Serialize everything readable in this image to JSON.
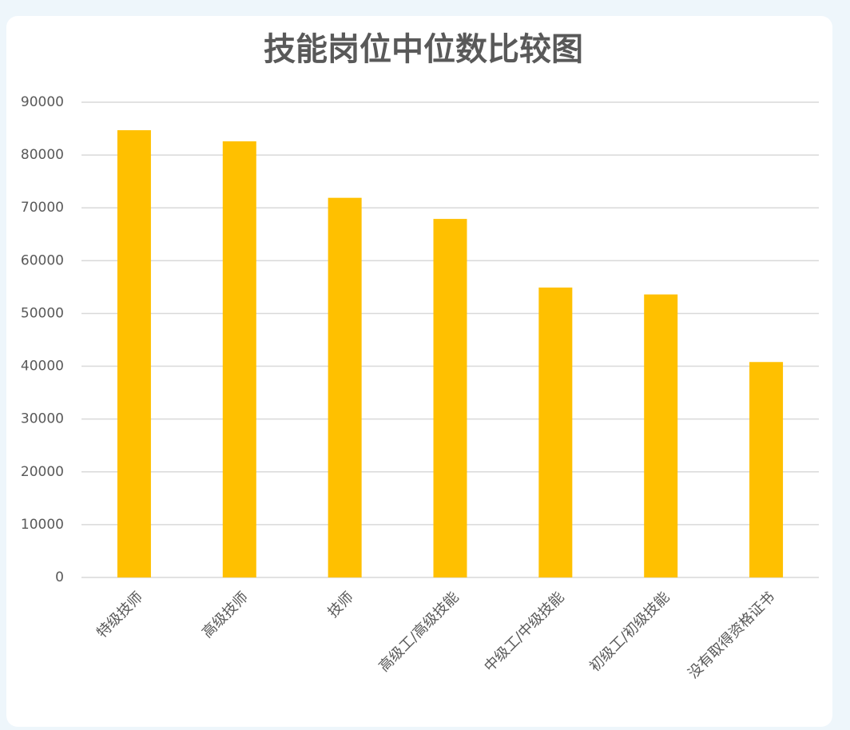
{
  "chart_data": {
    "type": "bar",
    "title": "技能岗位中位数比较图",
    "categories": [
      "特级技师",
      "高级技师",
      "技师",
      "高级工/高级技能",
      "中级工/中级技能",
      "初级工/初级技能",
      "没有取得资格证书"
    ],
    "values": [
      84700,
      82600,
      71900,
      67900,
      54900,
      53600,
      40800
    ],
    "color": "#ffc000",
    "ylim": [
      0,
      90000
    ],
    "yticks": [
      0,
      10000,
      20000,
      30000,
      40000,
      50000,
      60000,
      70000,
      80000,
      90000
    ],
    "grid": true
  }
}
